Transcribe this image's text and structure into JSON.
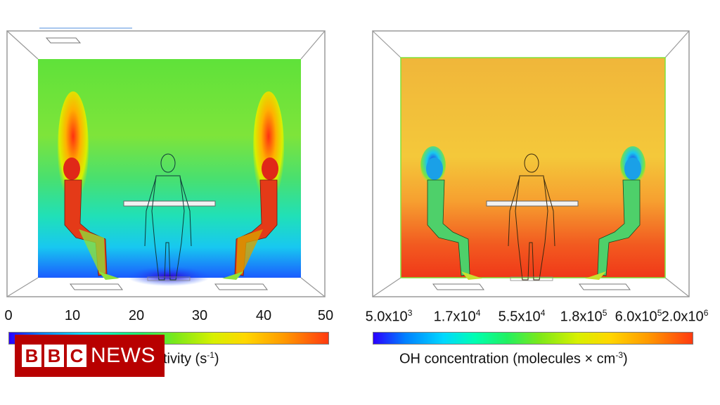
{
  "left_panel": {
    "ticks": [
      "0",
      "10",
      "20",
      "30",
      "40",
      "50"
    ],
    "colorbar_label_visible": "tivity (s",
    "colorbar_label_sup": "-1",
    "colorbar_label_end": ")"
  },
  "right_panel": {
    "ticks": [
      {
        "base": "5.0x10",
        "exp": "3"
      },
      {
        "base": "1.7x10",
        "exp": "4"
      },
      {
        "base": "5.5x10",
        "exp": "4"
      },
      {
        "base": "1.8x10",
        "exp": "5"
      },
      {
        "base": "6.0x10",
        "exp": "5"
      },
      {
        "base": "2.0x10",
        "exp": "6"
      }
    ],
    "colorbar_label": "OH concentration (molecules × cm",
    "colorbar_label_sup": "-3",
    "colorbar_label_end": ")"
  },
  "logo": {
    "letters": [
      "B",
      "B",
      "C"
    ],
    "word": "NEWS"
  },
  "colors": {
    "left_field_top": "#6fe03a",
    "left_field_bottom": "#1a5cff",
    "right_field": "#f5c23a",
    "right_field_bottom": "#f23a1a",
    "logo_red": "#b80000"
  }
}
